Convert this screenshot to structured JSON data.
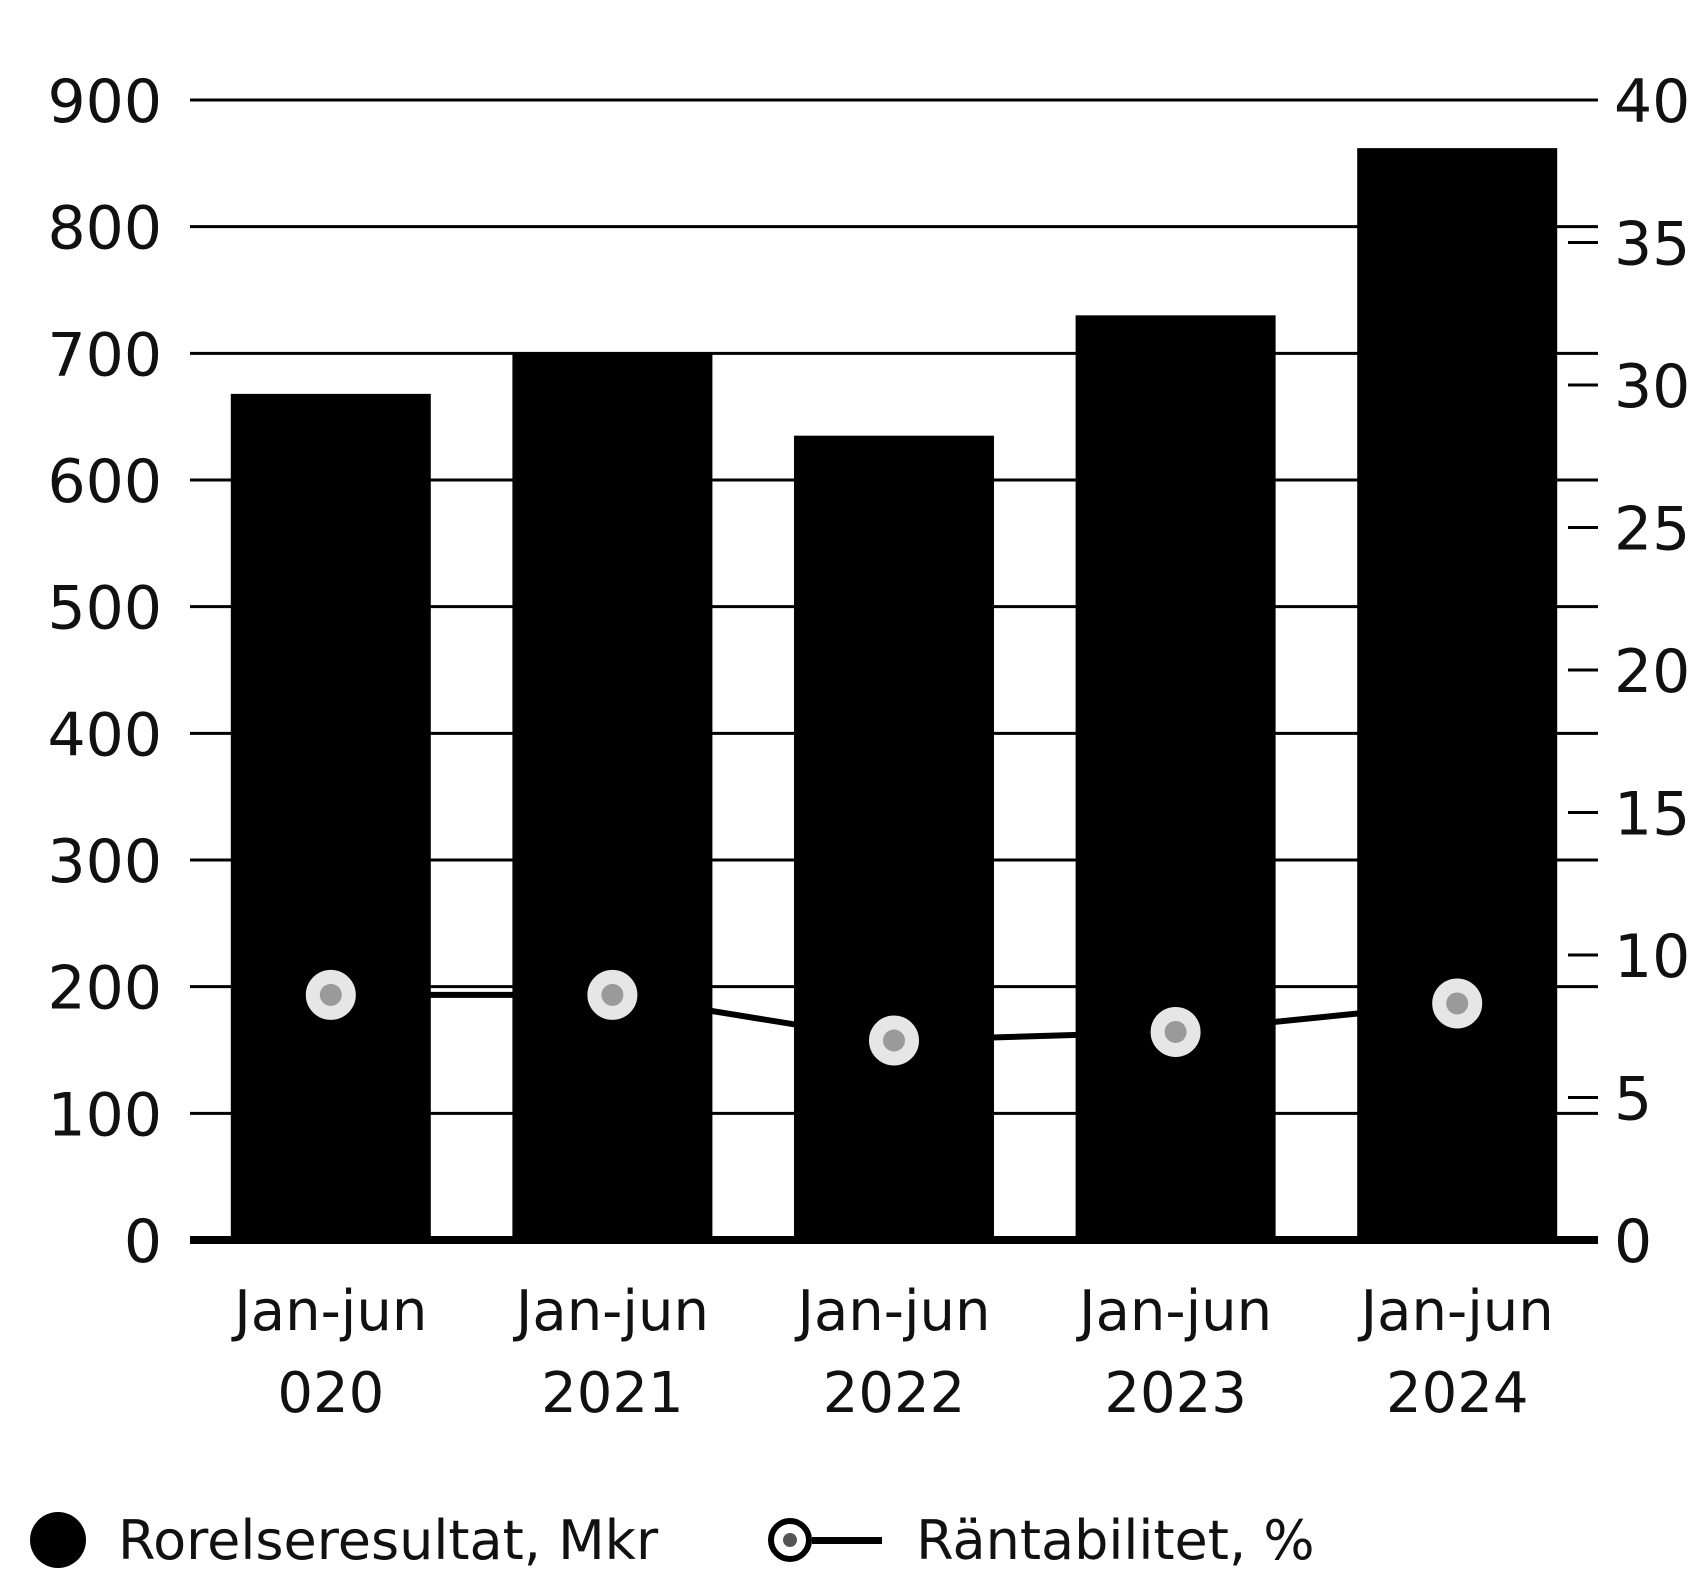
{
  "chart_data": {
    "type": "bar",
    "title": "",
    "categories": [
      [
        "Jan-jun",
        "020"
      ],
      [
        "Jan-jun",
        "2021"
      ],
      [
        "Jan-jun",
        "2022"
      ],
      [
        "Jan-jun",
        "2023"
      ],
      [
        "Jan-jun",
        "2024"
      ]
    ],
    "series": [
      {
        "name": "Rorelseresultat, Mkr",
        "kind": "bar",
        "axis": "left",
        "values": [
          668,
          700,
          635,
          730,
          862
        ]
      },
      {
        "name": "Räntabilitet, %",
        "kind": "line",
        "axis": "right",
        "values": [
          8.6,
          8.6,
          7.0,
          7.3,
          8.3
        ]
      }
    ],
    "y_left": {
      "min": 0,
      "max": 900,
      "ticks": [
        0,
        100,
        200,
        300,
        400,
        500,
        600,
        700,
        800,
        900
      ]
    },
    "y_right": {
      "min": 0,
      "max": 40,
      "ticks": [
        0,
        5,
        10,
        15,
        20,
        25,
        30,
        35,
        40
      ]
    },
    "grid": true,
    "legend_position": "bottom-left",
    "colors": {
      "bar": "#000000",
      "line": "#000000",
      "marker_fill": "#e6e6e6",
      "grid": "#000000"
    }
  },
  "legend": {
    "bars_label": "Rorelseresultat, Mkr",
    "line_label": "Räntabilitet, %"
  }
}
